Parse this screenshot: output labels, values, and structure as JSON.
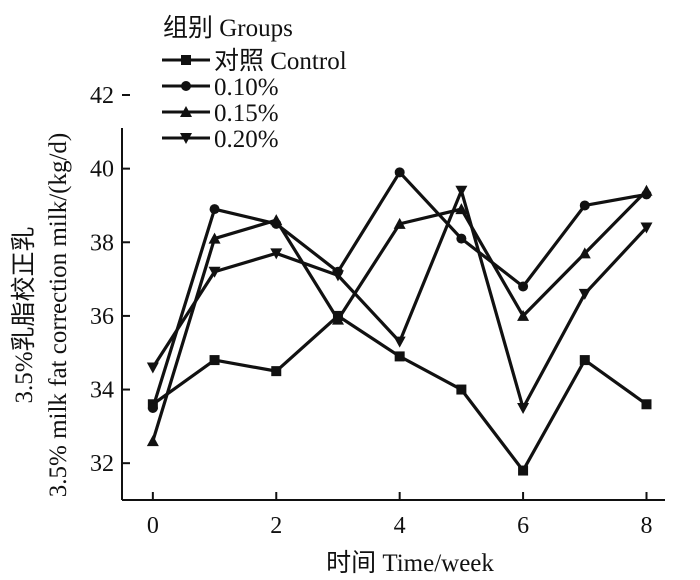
{
  "chart_data": {
    "type": "line",
    "xlabel": "时间  Time/week",
    "ylabel_line1": "3.5%乳脂校正乳",
    "ylabel_line2": "3.5%  milk fat correction milk/(kg/d)",
    "x": [
      0,
      1,
      2,
      3,
      4,
      5,
      6,
      7,
      8
    ],
    "xlim": [
      -0.5,
      8.3
    ],
    "ylim": [
      31,
      42
    ],
    "xticks": [
      "0",
      "2",
      "4",
      "6",
      "8"
    ],
    "xtick_values": [
      0,
      2,
      4,
      6,
      8
    ],
    "yticks": [
      "32",
      "34",
      "36",
      "38",
      "40",
      "42"
    ],
    "ytick_values": [
      32,
      34,
      36,
      38,
      40,
      42
    ],
    "legend_title": "组别 Groups",
    "legend_position": "top-left",
    "series": [
      {
        "name": "对照  Control",
        "marker": "square",
        "values": [
          33.6,
          34.8,
          34.5,
          36.0,
          34.9,
          34.0,
          31.8,
          34.8,
          33.6
        ]
      },
      {
        "name": "0.10%",
        "marker": "circle",
        "values": [
          33.5,
          38.9,
          38.5,
          37.2,
          39.9,
          38.1,
          36.8,
          39.0,
          39.3
        ]
      },
      {
        "name": "0.15%",
        "marker": "triangle-up",
        "values": [
          32.6,
          38.1,
          38.6,
          35.9,
          38.5,
          38.9,
          36.0,
          37.7,
          39.4
        ]
      },
      {
        "name": "0.20%",
        "marker": "triangle-down",
        "values": [
          34.6,
          37.2,
          37.7,
          37.1,
          35.3,
          39.4,
          33.5,
          36.6,
          38.4
        ]
      }
    ],
    "color": "#111111"
  }
}
